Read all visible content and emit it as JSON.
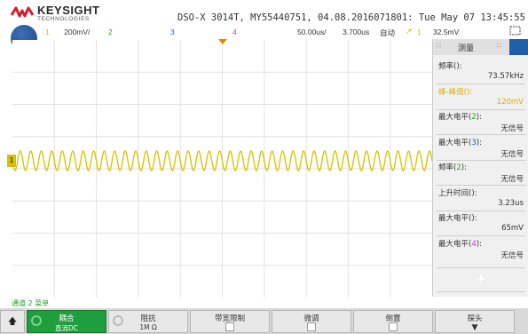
{
  "header": {
    "brand": "KEYSIGHT",
    "brand_sub": "TECHNOLOGIES",
    "info": "DSO-X 3014T, MY55440751, 04.08.2016071801: Tue May 07 13:45:55 2024",
    "channels": [
      {
        "num": "1",
        "scale": "200mV/",
        "color": "#d8c000"
      },
      {
        "num": "2",
        "scale": "",
        "color": "#2a9d2a"
      },
      {
        "num": "3",
        "scale": "",
        "color": "#1f5ea8"
      },
      {
        "num": "4",
        "scale": "",
        "color": "#c040c0"
      }
    ],
    "timebase": "50.00us/",
    "delay": "3.700us",
    "mode": "自动",
    "trigger_channel": "1",
    "trigger_level": "32.5mV",
    "colors": {
      "ch1": "#d8c000",
      "ch2": "#2a9d2a",
      "ch3": "#1f5ea8",
      "ch4": "#c040c0"
    }
  },
  "panel": {
    "title": "测量",
    "measurements": [
      {
        "label": "频率",
        "channel": "",
        "value": "73.57kHz",
        "color": "#333333",
        "ch_color": "#d8c000"
      },
      {
        "label": "峰-峰值",
        "channel": "",
        "value": "120mV",
        "color": "#e0b000",
        "ch_color": "#d8c000"
      },
      {
        "label": "最大电平",
        "channel": "2",
        "value": "无信号",
        "color": "#333333",
        "ch_color": "#2a9d2a"
      },
      {
        "label": "最大电平",
        "channel": "3",
        "value": "无信号",
        "color": "#333333",
        "ch_color": "#1f5ea8"
      },
      {
        "label": "频率",
        "channel": "2",
        "value": "无信号",
        "color": "#333333",
        "ch_color": "#2a9d2a"
      },
      {
        "label": "上升时间",
        "channel": "",
        "value": "3.23us",
        "color": "#333333",
        "ch_color": "#d8c000"
      },
      {
        "label": "最大电平",
        "channel": "",
        "value": "65mV",
        "color": "#333333",
        "ch_color": "#d8c000"
      },
      {
        "label": "最大电平",
        "channel": "4",
        "value": "无信号",
        "color": "#333333",
        "ch_color": "#c040c0"
      }
    ],
    "plus_label": "+"
  },
  "waveform": {
    "channel_marker": "1",
    "cycles": 40
  },
  "menu_label": "通道 2 菜单",
  "softkeys": [
    {
      "label": "耦合",
      "sub": "直流DC",
      "style": "green"
    },
    {
      "label": "阻抗",
      "sub": "1M Ω",
      "style": "normal"
    },
    {
      "label": "带宽限制",
      "sub": "",
      "style": "check"
    },
    {
      "label": "微调",
      "sub": "",
      "style": "check"
    },
    {
      "label": "倒置",
      "sub": "",
      "style": "check"
    },
    {
      "label": "探头",
      "sub": "",
      "style": "arrow"
    }
  ]
}
